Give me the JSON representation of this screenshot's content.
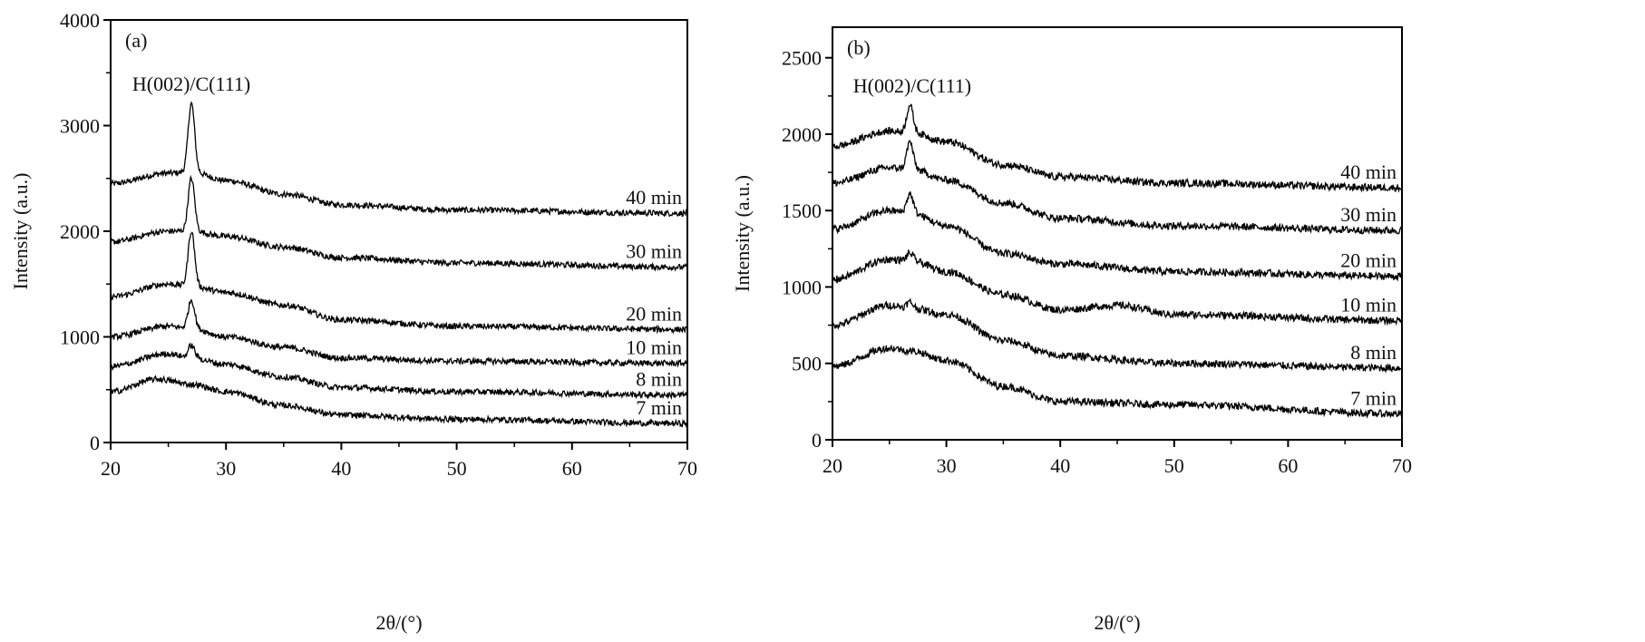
{
  "chart_data": [
    {
      "type": "line",
      "panel_label": "(a)",
      "annotation": "H(002)/C(111)",
      "annotation_x": 27,
      "xlabel": "2θ/(°)",
      "ylabel": "Intensity (a.u.)",
      "xlim": [
        20,
        70
      ],
      "ylim": [
        0,
        4000
      ],
      "xticks": [
        "20",
        "30",
        "40",
        "50",
        "60",
        "70"
      ],
      "yticks": [
        "0",
        "1000",
        "2000",
        "3000",
        "4000"
      ],
      "ytick_values": [
        0,
        1000,
        2000,
        3000,
        4000
      ],
      "xtick_values": [
        20,
        30,
        40,
        50,
        60,
        70
      ],
      "series": [
        {
          "name": "40 min",
          "peak": {
            "x": 27,
            "height": 650
          },
          "x": [
            20,
            25,
            27,
            30,
            35,
            40,
            50,
            70
          ],
          "y": [
            2450,
            2550,
            2560,
            2480,
            2350,
            2250,
            2200,
            2170
          ]
        },
        {
          "name": "30 min",
          "peak": {
            "x": 27,
            "height": 500
          },
          "x": [
            20,
            25,
            27,
            30,
            35,
            40,
            50,
            70
          ],
          "y": [
            1900,
            2000,
            2000,
            1950,
            1850,
            1750,
            1700,
            1660
          ]
        },
        {
          "name": "20 min",
          "peak": {
            "x": 27,
            "height": 520
          },
          "x": [
            20,
            25,
            27,
            30,
            35,
            40,
            50,
            70
          ],
          "y": [
            1380,
            1500,
            1480,
            1420,
            1300,
            1160,
            1100,
            1070
          ]
        },
        {
          "name": "10 min",
          "peak": {
            "x": 27,
            "height": 270
          },
          "x": [
            20,
            25,
            27,
            30,
            35,
            40,
            50,
            70
          ],
          "y": [
            1000,
            1100,
            1080,
            1000,
            900,
            800,
            770,
            750
          ]
        },
        {
          "name": "8 min",
          "peak": {
            "x": 27,
            "height": 120
          },
          "x": [
            20,
            25,
            27,
            30,
            35,
            40,
            50,
            70
          ],
          "y": [
            720,
            840,
            800,
            740,
            620,
            520,
            480,
            450
          ]
        },
        {
          "name": "7 min",
          "peak": {
            "x": 27,
            "height": 0
          },
          "x": [
            20,
            24,
            27,
            30,
            35,
            40,
            50,
            70
          ],
          "y": [
            480,
            600,
            550,
            480,
            350,
            260,
            220,
            180
          ]
        }
      ]
    },
    {
      "type": "line",
      "panel_label": "(b)",
      "annotation": "H(002)/C(111)",
      "annotation_x": 27,
      "xlabel": "2θ/(°)",
      "ylabel": "Intensity (a.u.)",
      "xlim": [
        20,
        70
      ],
      "ylim": [
        0,
        2700
      ],
      "xticks": [
        "20",
        "30",
        "40",
        "50",
        "60",
        "70"
      ],
      "yticks": [
        "0",
        "500",
        "1000",
        "1500",
        "2000",
        "2500"
      ],
      "ytick_values": [
        0,
        500,
        1000,
        1500,
        2000,
        2500
      ],
      "xtick_values": [
        20,
        30,
        40,
        50,
        60,
        70
      ],
      "series": [
        {
          "name": "40 min",
          "peak": {
            "x": 26.8,
            "height": 180
          },
          "x": [
            20,
            25,
            27,
            30,
            35,
            40,
            50,
            70
          ],
          "y": [
            1920,
            2020,
            2010,
            1950,
            1800,
            1720,
            1680,
            1650
          ]
        },
        {
          "name": "30 min",
          "peak": {
            "x": 26.8,
            "height": 180
          },
          "x": [
            20,
            25,
            27,
            30,
            35,
            40,
            50,
            70
          ],
          "y": [
            1680,
            1780,
            1770,
            1700,
            1550,
            1450,
            1400,
            1370
          ]
        },
        {
          "name": "20 min",
          "peak": {
            "x": 26.8,
            "height": 130
          },
          "x": [
            20,
            25,
            27,
            30,
            35,
            40,
            50,
            70
          ],
          "y": [
            1380,
            1500,
            1480,
            1400,
            1220,
            1150,
            1100,
            1070
          ]
        },
        {
          "name": "10 min",
          "peak": {
            "x": 26.8,
            "height": 50
          },
          "x": [
            20,
            25,
            27,
            30,
            35,
            40,
            45,
            50,
            70
          ],
          "y": [
            1050,
            1180,
            1170,
            1100,
            950,
            850,
            880,
            820,
            780
          ]
        },
        {
          "name": "8 min",
          "peak": {
            "x": 26.8,
            "height": 40
          },
          "x": [
            20,
            25,
            27,
            30,
            35,
            40,
            50,
            70
          ],
          "y": [
            750,
            880,
            860,
            820,
            650,
            550,
            500,
            470
          ]
        },
        {
          "name": "7 min",
          "peak": {
            "x": 26.8,
            "height": 0
          },
          "x": [
            20,
            25,
            27,
            30,
            35,
            40,
            50,
            70
          ],
          "y": [
            480,
            600,
            580,
            520,
            350,
            250,
            230,
            170
          ]
        }
      ]
    }
  ]
}
